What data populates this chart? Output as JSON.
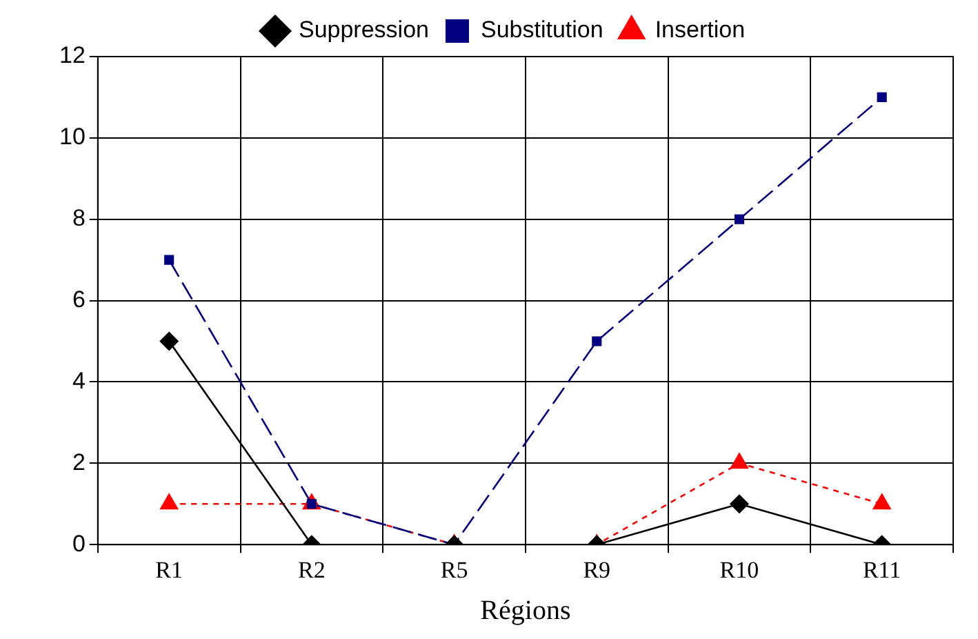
{
  "chart_data": {
    "type": "line",
    "xlabel": "Régions",
    "categories": [
      "R1",
      "R2",
      "R5",
      "R9",
      "R10",
      "R11"
    ],
    "series": [
      {
        "name": "Suppression",
        "color": "#000000",
        "values": [
          5,
          0,
          0,
          0,
          1,
          0
        ],
        "marker": "diamond",
        "line_style": "solid"
      },
      {
        "name": "Substitution",
        "color": "#000080",
        "values": [
          7,
          1,
          0,
          5,
          8,
          11
        ],
        "marker": "square",
        "line_style": "dashed"
      },
      {
        "name": "Insertion",
        "color": "#ff0000",
        "values": [
          1,
          1,
          0,
          0,
          2,
          1
        ],
        "marker": "triangle",
        "line_style": "dotted"
      }
    ],
    "ylim": [
      0,
      12
    ],
    "yticks": [
      0,
      2,
      4,
      6,
      8,
      10,
      12
    ],
    "grid": true,
    "legend": "top"
  }
}
